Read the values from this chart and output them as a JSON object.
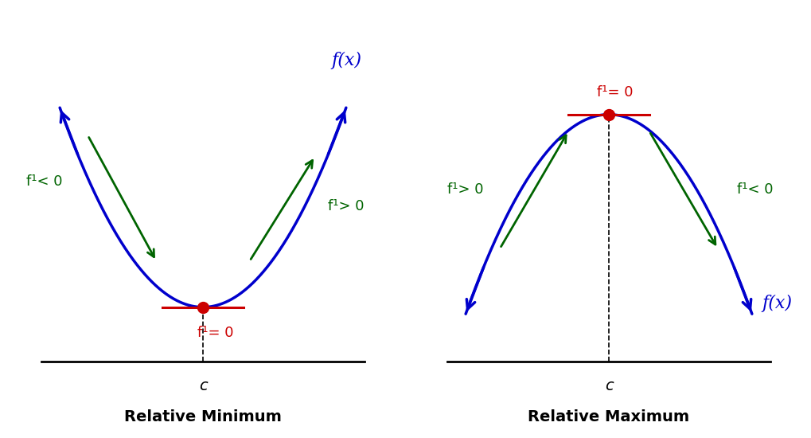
{
  "blue": "#0000cc",
  "green": "#006400",
  "red": "#cc0000",
  "black": "#000000",
  "title_min": "Relative Minimum",
  "title_max": "Relative Maximum",
  "label_fx": "f(x)",
  "label_c": "c",
  "label_fprime_zero": "f¹= 0",
  "label_fprime_neg": "f¹< 0",
  "label_fprime_pos": "f¹> 0",
  "title_fontsize": 14,
  "label_fontsize": 13,
  "c_fontsize": 13,
  "fx_fontsize": 16
}
